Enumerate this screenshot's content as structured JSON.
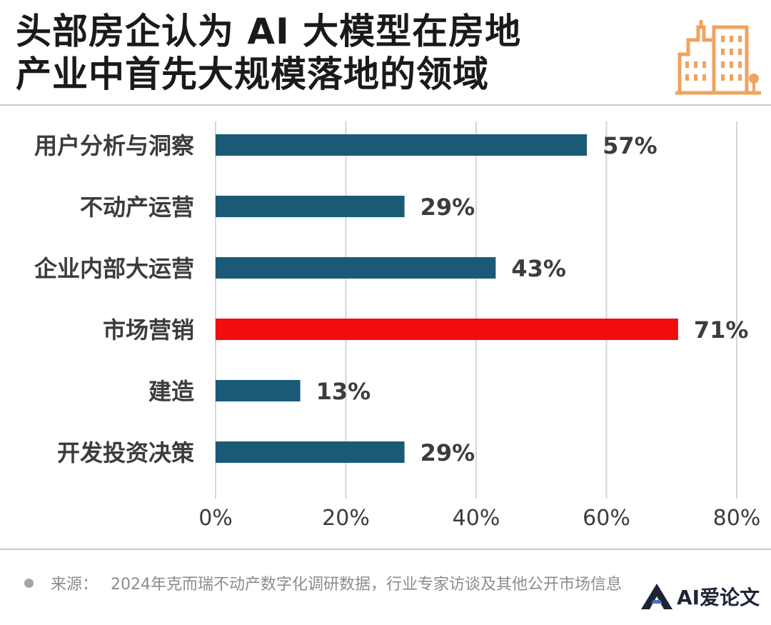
{
  "title": {
    "line1": "头部房企认为 AI 大模型在房地",
    "line2": "产业中首先大规模落地的领域"
  },
  "footer": {
    "source_label": "来源：",
    "source_text": "2024年克而瑞不动产数字化调研数据，行业专家访谈及其他公开市场信息",
    "logo_text": "AI爱论文"
  },
  "icons": {
    "header": "building-icon",
    "logo": "ai-logo-icon"
  },
  "chart_data": {
    "type": "bar",
    "orientation": "horizontal",
    "categories": [
      "用户分析与洞察",
      "不动产运营",
      "企业内部大运营",
      "市场营销",
      "建造",
      "开发投资决策"
    ],
    "values": [
      57,
      29,
      43,
      71,
      13,
      29
    ],
    "value_labels": [
      "57%",
      "29%",
      "43%",
      "71%",
      "13%",
      "29%"
    ],
    "highlight": "市场营销",
    "colors": {
      "bar": "#1b5a77",
      "highlight": "#f20d0d",
      "grid": "#d6d6d6",
      "label": "#3c3c3c"
    },
    "xlim": [
      0,
      80
    ],
    "xticks": [
      0,
      20,
      40,
      60,
      80
    ],
    "xtick_labels": [
      "0%",
      "20%",
      "40%",
      "60%",
      "80%"
    ],
    "grid": true
  }
}
